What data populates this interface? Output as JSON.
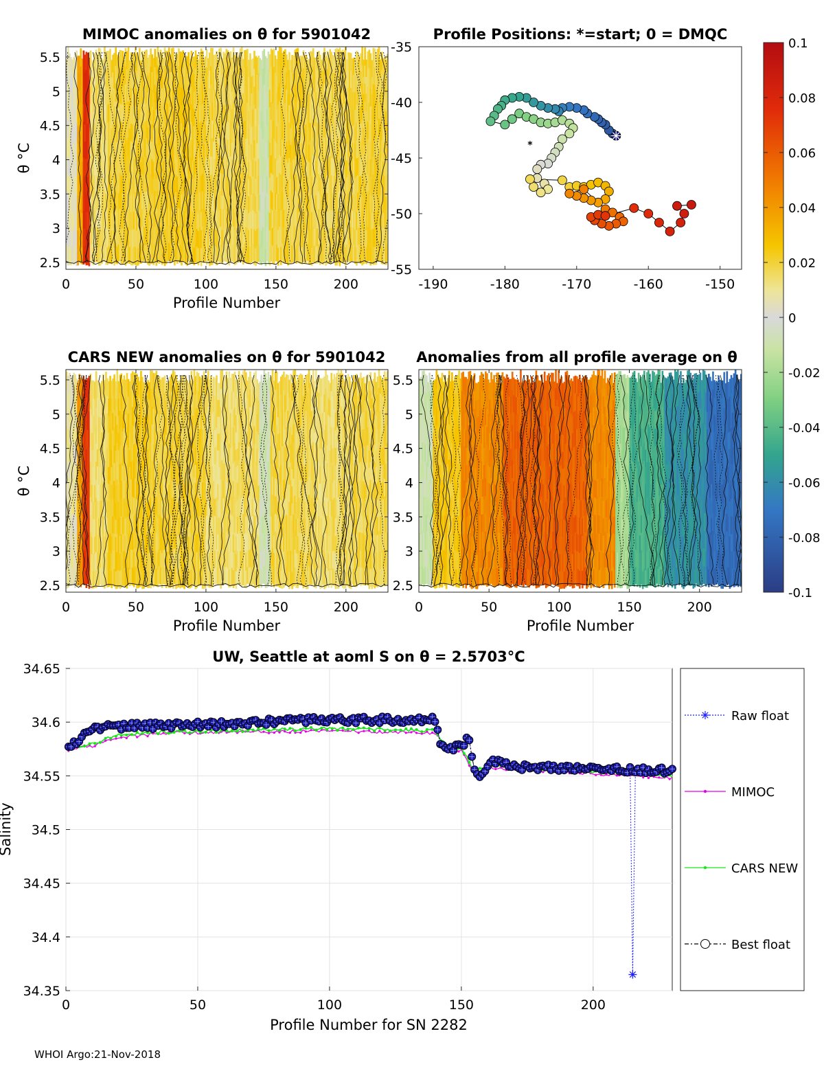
{
  "footer": "WHOI Argo:21-Nov-2018",
  "colors": {
    "raw": "#1f1fff",
    "mimoc": "#e600e6",
    "cars": "#19e619",
    "best": "#000000",
    "bestFill": "#1a1aa6",
    "grid": "#e2e2e2"
  },
  "chart_data": [
    {
      "id": "mimoc_anom",
      "type": "heatmap",
      "title": "MIMOC anomalies on θ  for 5901042",
      "xlabel": "Profile Number",
      "ylabel": "θ °C",
      "xlim": [
        0,
        230
      ],
      "ylim": [
        2.4,
        5.65
      ],
      "xticks": [
        0,
        50,
        100,
        150,
        200
      ],
      "yticks": [
        2.5,
        3,
        3.5,
        4,
        4.5,
        5,
        5.5
      ],
      "ytick_labels": [
        "2.5",
        "3",
        "3.5",
        "4",
        "4.5",
        "5",
        "5.5"
      ],
      "clim": [
        -0.1,
        0.1
      ],
      "right_axis": {
        "yticks": [
          -35,
          -40,
          -45,
          -50,
          -55
        ],
        "ytick_labels": [
          "-35",
          "-40",
          "-45",
          "-50",
          "-55"
        ]
      },
      "anomaly_bands": [
        {
          "x": [
            0,
            8
          ],
          "value": 0.005
        },
        {
          "x": [
            8,
            12
          ],
          "value": 0.035
        },
        {
          "x": [
            12,
            17
          ],
          "value": 0.075
        },
        {
          "x": [
            17,
            30
          ],
          "value": 0.015
        },
        {
          "x": [
            30,
            60
          ],
          "value": 0.02
        },
        {
          "x": [
            60,
            100
          ],
          "value": 0.022
        },
        {
          "x": [
            100,
            138
          ],
          "value": 0.018
        },
        {
          "x": [
            138,
            145
          ],
          "value": -0.01
        },
        {
          "x": [
            145,
            175
          ],
          "value": 0.02
        },
        {
          "x": [
            175,
            205
          ],
          "value": 0.018
        },
        {
          "x": [
            205,
            230
          ],
          "value": 0.02
        }
      ]
    },
    {
      "id": "positions",
      "type": "scatter",
      "title": "Profile Positions: *=start; 0 = DMQC",
      "xlim": [
        -192,
        -147
      ],
      "ylim": [
        -55,
        -35
      ],
      "xticks": [
        -190,
        -180,
        -170,
        -160,
        -150
      ],
      "points": [
        [
          -164.5,
          -43
        ],
        [
          -165,
          -42.8
        ],
        [
          -165.5,
          -42.5
        ],
        [
          -166,
          -42
        ],
        [
          -166.5,
          -41.8
        ],
        [
          -167,
          -41.5
        ],
        [
          -167.5,
          -41.3
        ],
        [
          -168.5,
          -41
        ],
        [
          -169,
          -40.7
        ],
        [
          -170,
          -40.5
        ],
        [
          -171,
          -40.4
        ],
        [
          -172,
          -40.5
        ],
        [
          -172.5,
          -40.8
        ],
        [
          -173,
          -40.6
        ],
        [
          -174,
          -40.5
        ],
        [
          -175,
          -40.3
        ],
        [
          -176,
          -40
        ],
        [
          -177,
          -39.6
        ],
        [
          -178,
          -39.5
        ],
        [
          -179,
          -39.6
        ],
        [
          -180,
          -39.8
        ],
        [
          -180.5,
          -40.3
        ],
        [
          -181,
          -40.6
        ],
        [
          -181.5,
          -41.2
        ],
        [
          -182,
          -41.7
        ],
        [
          -180,
          -42
        ],
        [
          -179,
          -41.5
        ],
        [
          -178,
          -41
        ],
        [
          -177,
          -41.3
        ],
        [
          -176,
          -41.5
        ],
        [
          -175,
          -41.8
        ],
        [
          -174,
          -41.9
        ],
        [
          -173,
          -41.8
        ],
        [
          -172,
          -41.6
        ],
        [
          -171,
          -41.9
        ],
        [
          -170.5,
          -42.3
        ],
        [
          -171,
          -42.8
        ],
        [
          -172,
          -43.3
        ],
        [
          -172.5,
          -44
        ],
        [
          -173,
          -44.5
        ],
        [
          -173.5,
          -45
        ],
        [
          -174,
          -45.5
        ],
        [
          -175,
          -45.6
        ],
        [
          -175.5,
          -46
        ],
        [
          -175.5,
          -46.8
        ],
        [
          -174.5,
          -47.3
        ],
        [
          -174,
          -47.8
        ],
        [
          -175,
          -48.1
        ],
        [
          -176,
          -47.6
        ],
        [
          -176.5,
          -46.9
        ],
        [
          -172,
          -47
        ],
        [
          -171,
          -47.6
        ],
        [
          -170,
          -47.5
        ],
        [
          -169,
          -47.6
        ],
        [
          -168,
          -47.4
        ],
        [
          -167,
          -47.2
        ],
        [
          -166,
          -47.5
        ],
        [
          -165.5,
          -48
        ],
        [
          -166,
          -48.7
        ],
        [
          -167,
          -49
        ],
        [
          -168,
          -48.8
        ],
        [
          -169,
          -48.6
        ],
        [
          -170,
          -48.4
        ],
        [
          -171,
          -48.2
        ],
        [
          -169,
          -47.8
        ],
        [
          -166,
          -49.6
        ],
        [
          -165,
          -49.9
        ],
        [
          -164,
          -50.3
        ],
        [
          -163.5,
          -50.7
        ],
        [
          -164.5,
          -50.9
        ],
        [
          -165.5,
          -51.1
        ],
        [
          -166.5,
          -50.9
        ],
        [
          -167.5,
          -50.6
        ],
        [
          -168,
          -50.3
        ],
        [
          -167,
          -50.1
        ],
        [
          -166,
          -50.2
        ],
        [
          -162,
          -49.5
        ],
        [
          -160,
          -50
        ],
        [
          -158.5,
          -50.8
        ],
        [
          -157,
          -51.6
        ],
        [
          -155.5,
          -50.8
        ],
        [
          -155,
          -50
        ],
        [
          -156,
          -49.3
        ],
        [
          -154,
          -49.2
        ]
      ],
      "start_marker": [
        -164.5,
        -43
      ],
      "stray_marker": [
        -176.5,
        -43.8
      ]
    },
    {
      "id": "colorbar",
      "type": "heatmap",
      "clim": [
        -0.1,
        0.1
      ],
      "ticks": [
        0.1,
        0.08,
        0.06,
        0.04,
        0.02,
        0,
        -0.02,
        -0.04,
        -0.06,
        -0.08,
        -0.1
      ],
      "tick_labels": [
        "0.1",
        "0.08",
        "0.06",
        "0.04",
        "0.02",
        "0",
        "-0.02",
        "-0.04",
        "-0.06",
        "-0.08",
        "-0.1"
      ]
    },
    {
      "id": "cars_anom",
      "type": "heatmap",
      "title": "CARS NEW anomalies on θ for 5901042",
      "xlabel": "Profile Number",
      "ylabel": "θ °C",
      "xlim": [
        0,
        230
      ],
      "ylim": [
        2.4,
        5.65
      ],
      "xticks": [
        0,
        50,
        100,
        150,
        200
      ],
      "yticks": [
        2.5,
        3,
        3.5,
        4,
        4.5,
        5,
        5.5
      ],
      "ytick_labels": [
        "2.5",
        "3",
        "3.5",
        "4",
        "4.5",
        "5",
        "5.5"
      ],
      "clim": [
        -0.1,
        0.1
      ],
      "anomaly_bands": [
        {
          "x": [
            0,
            8
          ],
          "value": 0.008
        },
        {
          "x": [
            8,
            12
          ],
          "value": 0.04
        },
        {
          "x": [
            12,
            17
          ],
          "value": 0.072
        },
        {
          "x": [
            17,
            30
          ],
          "value": 0.015
        },
        {
          "x": [
            30,
            60
          ],
          "value": 0.022
        },
        {
          "x": [
            60,
            100
          ],
          "value": 0.02
        },
        {
          "x": [
            100,
            138
          ],
          "value": 0.015
        },
        {
          "x": [
            138,
            146
          ],
          "value": -0.008
        },
        {
          "x": [
            146,
            175
          ],
          "value": 0.018
        },
        {
          "x": [
            175,
            205
          ],
          "value": 0.015
        },
        {
          "x": [
            205,
            230
          ],
          "value": 0.018
        }
      ]
    },
    {
      "id": "avg_anom",
      "type": "heatmap",
      "title": "Anomalies from all profile average on θ",
      "xlabel": "Profile Number",
      "xlim": [
        0,
        230
      ],
      "ylim": [
        2.4,
        5.65
      ],
      "xticks": [
        0,
        50,
        100,
        150,
        200
      ],
      "yticks": [
        2.5,
        3,
        3.5,
        4,
        4.5,
        5,
        5.5
      ],
      "ytick_labels": [
        "2.5",
        "3",
        "3.5",
        "4",
        "4.5",
        "5",
        "5.5"
      ],
      "clim": [
        -0.1,
        0.1
      ],
      "anomaly_bands": [
        {
          "x": [
            0,
            10
          ],
          "value": -0.01
        },
        {
          "x": [
            10,
            30
          ],
          "value": 0.025
        },
        {
          "x": [
            30,
            60
          ],
          "value": 0.045
        },
        {
          "x": [
            60,
            120
          ],
          "value": 0.058
        },
        {
          "x": [
            120,
            140
          ],
          "value": 0.045
        },
        {
          "x": [
            140,
            150
          ],
          "value": -0.02
        },
        {
          "x": [
            150,
            175
          ],
          "value": -0.045
        },
        {
          "x": [
            175,
            205
          ],
          "value": -0.058
        },
        {
          "x": [
            205,
            230
          ],
          "value": -0.075
        }
      ]
    },
    {
      "id": "salinity",
      "type": "line",
      "title": "UW, Seattle at aoml S on θ = 2.5703°C",
      "xlabel": "Profile Number for SN 2282",
      "ylabel": "Salinity",
      "xlim": [
        0,
        230
      ],
      "ylim": [
        34.35,
        34.65
      ],
      "xticks": [
        0,
        50,
        100,
        150,
        200
      ],
      "yticks": [
        34.35,
        34.4,
        34.45,
        34.5,
        34.55,
        34.6,
        34.65
      ],
      "ytick_labels": [
        "34.35",
        "34.4",
        "34.45",
        "34.5",
        "34.55",
        "34.6",
        "34.65"
      ],
      "legend": [
        "Raw float",
        "MIMOC",
        "CARS NEW",
        "Best float"
      ],
      "raw_float_outlier": [
        215,
        34.365
      ],
      "series_knots": {
        "best": [
          [
            0,
            34.578
          ],
          [
            5,
            34.583
          ],
          [
            10,
            34.595
          ],
          [
            20,
            34.596
          ],
          [
            40,
            34.597
          ],
          [
            60,
            34.598
          ],
          [
            80,
            34.601
          ],
          [
            100,
            34.602
          ],
          [
            140,
            34.602
          ],
          [
            142,
            34.582
          ],
          [
            145,
            34.573
          ],
          [
            150,
            34.578
          ],
          [
            153,
            34.586
          ],
          [
            155,
            34.555
          ],
          [
            157,
            34.548
          ],
          [
            160,
            34.56
          ],
          [
            165,
            34.566
          ],
          [
            170,
            34.558
          ],
          [
            200,
            34.557
          ],
          [
            230,
            34.555
          ]
        ],
        "mimoc": [
          [
            0,
            34.574
          ],
          [
            10,
            34.578
          ],
          [
            20,
            34.586
          ],
          [
            40,
            34.59
          ],
          [
            100,
            34.592
          ],
          [
            140,
            34.59
          ],
          [
            145,
            34.572
          ],
          [
            150,
            34.574
          ],
          [
            155,
            34.552
          ],
          [
            160,
            34.558
          ],
          [
            200,
            34.552
          ],
          [
            230,
            34.548
          ]
        ],
        "cars": [
          [
            0,
            34.576
          ],
          [
            10,
            34.58
          ],
          [
            20,
            34.588
          ],
          [
            40,
            34.591
          ],
          [
            100,
            34.594
          ],
          [
            140,
            34.592
          ],
          [
            145,
            34.574
          ],
          [
            150,
            34.576
          ],
          [
            155,
            34.554
          ],
          [
            160,
            34.559
          ],
          [
            200,
            34.554
          ],
          [
            230,
            34.55
          ]
        ]
      }
    }
  ]
}
